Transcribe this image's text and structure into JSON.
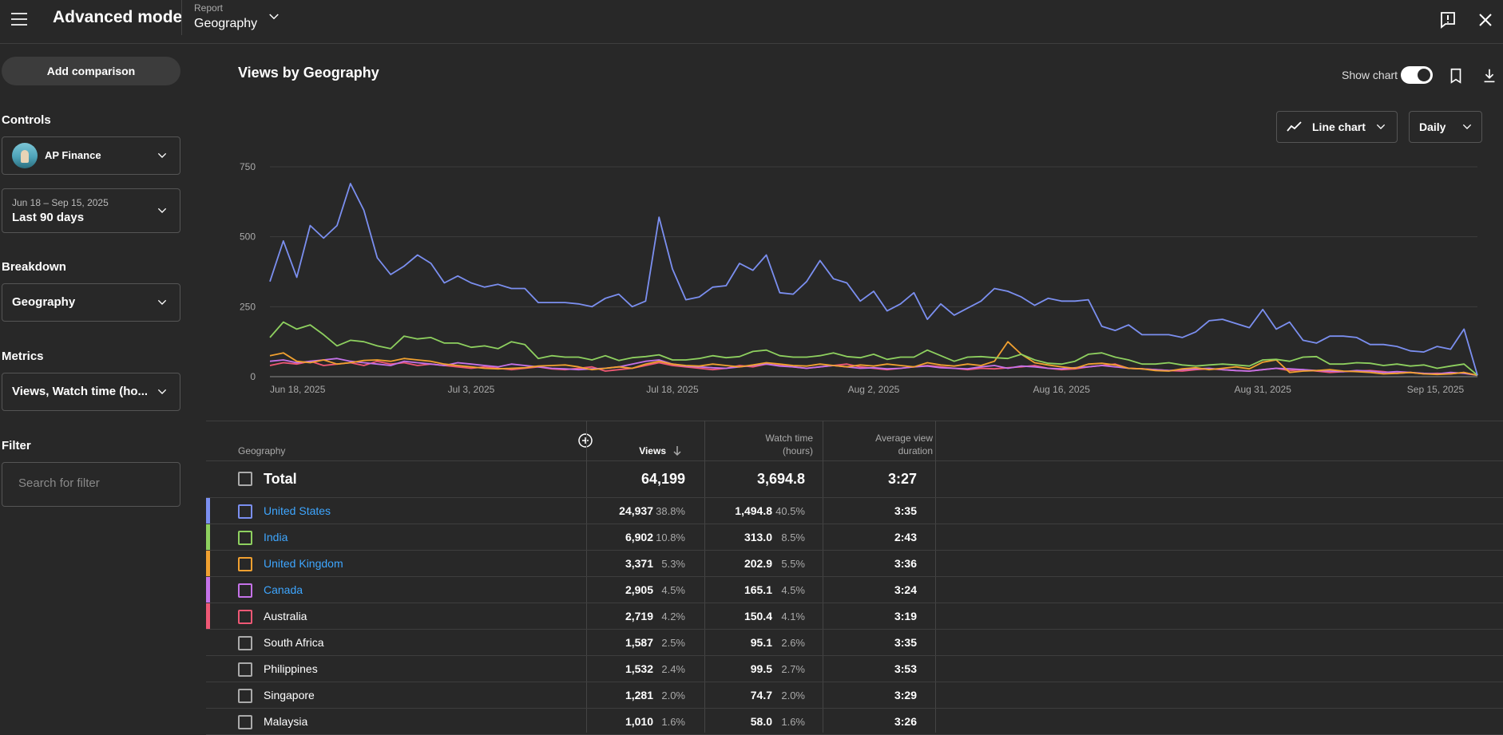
{
  "header": {
    "title": "Advanced mode",
    "report_label": "Report",
    "report_value": "Geography"
  },
  "sidebar": {
    "add_comparison": "Add comparison",
    "controls_heading": "Controls",
    "channel": "AP Finance",
    "date_range": "Jun 18 – Sep 15, 2025",
    "date_preset": "Last 90 days",
    "breakdown_heading": "Breakdown",
    "breakdown_value": "Geography",
    "metrics_heading": "Metrics",
    "metrics_value": "Views, Watch time (ho...",
    "filter_heading": "Filter",
    "filter_placeholder": "Search for filter"
  },
  "main": {
    "title": "Views by Geography",
    "show_chart_label": "Show chart",
    "show_chart_on": true,
    "chart_type_label": "Line chart",
    "interval_label": "Daily"
  },
  "chart_data": {
    "type": "line",
    "ylim": [
      0,
      750
    ],
    "yticks": [
      "0",
      "250",
      "500",
      "750"
    ],
    "xtick_labels": [
      "Jun 18, 2025",
      "Jul 3, 2025",
      "Jul 18, 2025",
      "Aug 2, 2025",
      "Aug 16, 2025",
      "Aug 31, 2025",
      "Sep 15, 2025"
    ],
    "xtick_days": [
      0,
      15,
      30,
      45,
      59,
      74,
      89
    ],
    "grid": true,
    "series": [
      {
        "name": "United States",
        "color": "#7b8ff0",
        "values": [
          340,
          485,
          355,
          540,
          495,
          540,
          690,
          595,
          425,
          365,
          395,
          435,
          405,
          335,
          360,
          335,
          320,
          330,
          315,
          315,
          265,
          265,
          265,
          260,
          250,
          280,
          295,
          250,
          270,
          570,
          385,
          275,
          285,
          320,
          325,
          405,
          380,
          435,
          300,
          295,
          340,
          415,
          350,
          335,
          270,
          305,
          235,
          260,
          300,
          205,
          260,
          220,
          245,
          270,
          315,
          305,
          285,
          255,
          280,
          270,
          270,
          275,
          180,
          165,
          185,
          150,
          150,
          150,
          140,
          160,
          200,
          205,
          190,
          175,
          240,
          170,
          195,
          130,
          120,
          145,
          145,
          140,
          115,
          115,
          108,
          92,
          88,
          108,
          98,
          170,
          5
        ]
      },
      {
        "name": "India",
        "color": "#8ed05f",
        "values": [
          140,
          195,
          170,
          185,
          150,
          110,
          130,
          125,
          110,
          100,
          145,
          135,
          140,
          120,
          120,
          105,
          110,
          100,
          125,
          115,
          65,
          75,
          70,
          70,
          60,
          75,
          58,
          68,
          72,
          78,
          60,
          60,
          65,
          75,
          68,
          72,
          90,
          95,
          75,
          70,
          70,
          75,
          85,
          72,
          68,
          80,
          62,
          70,
          70,
          95,
          75,
          55,
          70,
          72,
          68,
          65,
          80,
          60,
          48,
          45,
          55,
          80,
          85,
          70,
          60,
          45,
          45,
          50,
          42,
          38,
          42,
          45,
          42,
          38,
          60,
          62,
          55,
          70,
          72,
          45,
          45,
          50,
          48,
          40,
          45,
          38,
          42,
          30,
          38,
          45,
          5
        ]
      },
      {
        "name": "United Kingdom",
        "color": "#f0a030",
        "values": [
          75,
          85,
          55,
          50,
          60,
          45,
          50,
          58,
          60,
          55,
          65,
          60,
          55,
          45,
          40,
          35,
          30,
          28,
          30,
          32,
          38,
          40,
          42,
          35,
          25,
          30,
          35,
          30,
          45,
          55,
          45,
          40,
          38,
          45,
          40,
          35,
          42,
          50,
          45,
          40,
          38,
          45,
          40,
          35,
          42,
          38,
          45,
          40,
          35,
          50,
          42,
          38,
          45,
          40,
          55,
          125,
          80,
          50,
          42,
          35,
          30,
          45,
          48,
          42,
          30,
          28,
          22,
          20,
          28,
          32,
          25,
          30,
          35,
          28,
          52,
          60,
          15,
          20,
          22,
          25,
          20,
          18,
          15,
          10,
          12,
          15,
          10,
          8,
          10,
          15,
          5
        ]
      },
      {
        "name": "Canada",
        "color": "#c572e8",
        "values": [
          55,
          60,
          50,
          55,
          60,
          65,
          55,
          50,
          45,
          40,
          55,
          50,
          45,
          40,
          50,
          45,
          40,
          35,
          45,
          40,
          35,
          30,
          28,
          25,
          28,
          30,
          35,
          45,
          55,
          60,
          45,
          38,
          35,
          32,
          30,
          35,
          40,
          45,
          38,
          35,
          30,
          35,
          40,
          35,
          30,
          32,
          28,
          30,
          35,
          38,
          32,
          30,
          28,
          35,
          40,
          30,
          38,
          35,
          30,
          28,
          32,
          35,
          40,
          35,
          30,
          28,
          25,
          22,
          25,
          28,
          30,
          25,
          22,
          20,
          25,
          30,
          28,
          25,
          22,
          20,
          18,
          22,
          20,
          15,
          18,
          15,
          12,
          10,
          15,
          12,
          5
        ]
      },
      {
        "name": "Australia",
        "color": "#ef5875",
        "values": [
          40,
          50,
          45,
          55,
          40,
          45,
          50,
          40,
          55,
          45,
          50,
          40,
          45,
          40,
          35,
          30,
          35,
          30,
          25,
          30,
          35,
          28,
          25,
          30,
          35,
          20,
          25,
          30,
          40,
          50,
          40,
          35,
          30,
          25,
          30,
          40,
          35,
          45,
          40,
          35,
          30,
          35,
          40,
          45,
          35,
          30,
          25,
          30,
          35,
          40,
          35,
          30,
          25,
          30,
          28,
          32,
          35,
          40,
          30,
          25,
          28,
          35,
          40,
          45,
          30,
          28,
          25,
          22,
          20,
          25,
          28,
          25,
          22,
          20,
          25,
          30,
          22,
          25,
          20,
          15,
          18,
          20,
          22,
          18,
          12,
          15,
          10,
          12,
          10,
          15,
          5
        ]
      }
    ]
  },
  "table": {
    "headers": {
      "geography": "Geography",
      "views": "Views",
      "watch_time": [
        "Watch time",
        "(hours)"
      ],
      "avg_duration": [
        "Average view",
        "duration"
      ]
    },
    "total": {
      "label": "Total",
      "views": "64,199",
      "watch": "3,694.8",
      "avg": "3:27"
    },
    "rows": [
      {
        "name": "United States",
        "views": "24,937",
        "views_pct": "38.8%",
        "watch": "1,494.8",
        "watch_pct": "40.5%",
        "avg": "3:35",
        "color": "#7b8ff0",
        "link": true
      },
      {
        "name": "India",
        "views": "6,902",
        "views_pct": "10.8%",
        "watch": "313.0",
        "watch_pct": "8.5%",
        "avg": "2:43",
        "color": "#8ed05f",
        "link": true
      },
      {
        "name": "United Kingdom",
        "views": "3,371",
        "views_pct": "5.3%",
        "watch": "202.9",
        "watch_pct": "5.5%",
        "avg": "3:36",
        "color": "#f0a030",
        "link": true
      },
      {
        "name": "Canada",
        "views": "2,905",
        "views_pct": "4.5%",
        "watch": "165.1",
        "watch_pct": "4.5%",
        "avg": "3:24",
        "color": "#c572e8",
        "link": true
      },
      {
        "name": "Australia",
        "views": "2,719",
        "views_pct": "4.2%",
        "watch": "150.4",
        "watch_pct": "4.1%",
        "avg": "3:19",
        "color": "#ef5875",
        "link": false
      },
      {
        "name": "South Africa",
        "views": "1,587",
        "views_pct": "2.5%",
        "watch": "95.1",
        "watch_pct": "2.6%",
        "avg": "3:35",
        "color": "",
        "link": false
      },
      {
        "name": "Philippines",
        "views": "1,532",
        "views_pct": "2.4%",
        "watch": "99.5",
        "watch_pct": "2.7%",
        "avg": "3:53",
        "color": "",
        "link": false
      },
      {
        "name": "Singapore",
        "views": "1,281",
        "views_pct": "2.0%",
        "watch": "74.7",
        "watch_pct": "2.0%",
        "avg": "3:29",
        "color": "",
        "link": false
      },
      {
        "name": "Malaysia",
        "views": "1,010",
        "views_pct": "1.6%",
        "watch": "58.0",
        "watch_pct": "1.6%",
        "avg": "3:26",
        "color": "",
        "link": false
      }
    ]
  }
}
